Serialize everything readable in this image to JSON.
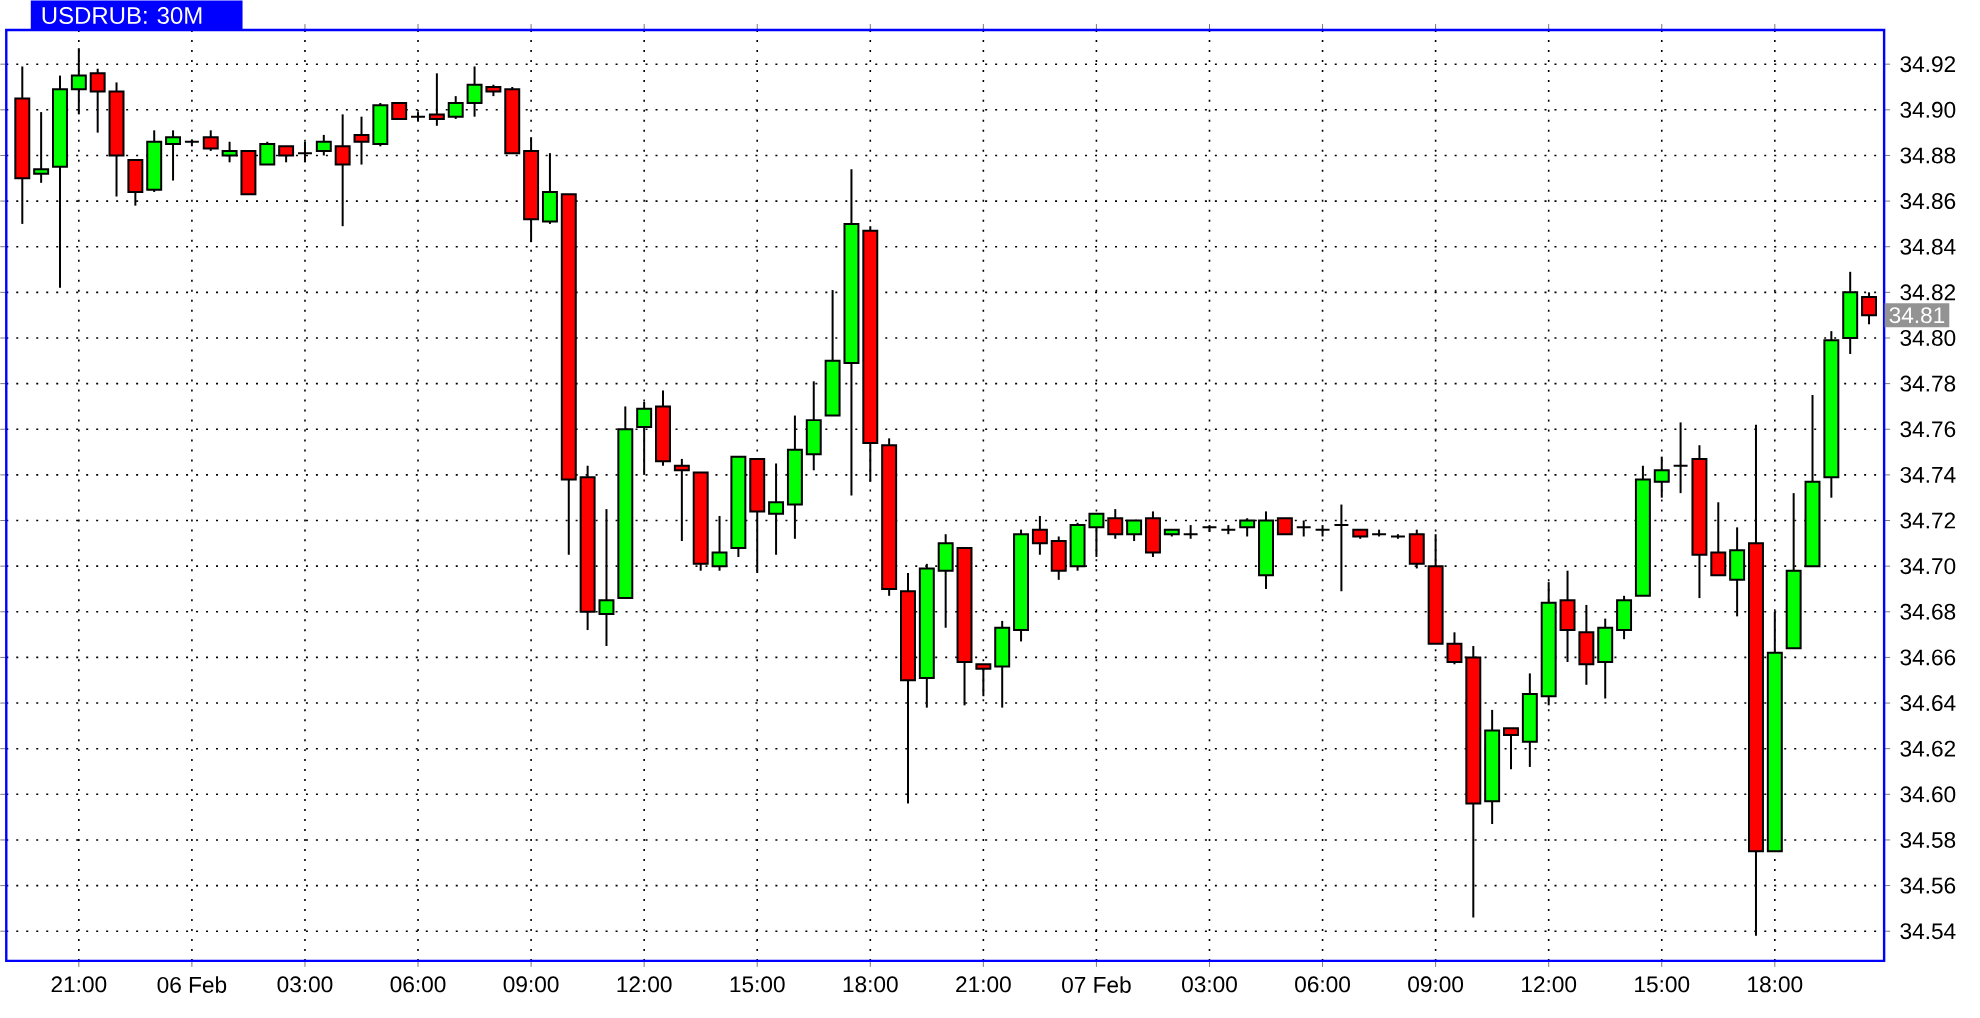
{
  "chart_data": {
    "type": "candlestick",
    "title": "USDRUB: 30M",
    "categories": [
      null,
      null,
      null,
      "21:00",
      null,
      null,
      null,
      null,
      null,
      "06 Feb",
      null,
      null,
      null,
      null,
      null,
      "03:00",
      null,
      null,
      null,
      null,
      null,
      "06:00",
      null,
      null,
      null,
      null,
      null,
      "09:00",
      null,
      null,
      null,
      null,
      null,
      "12:00",
      null,
      null,
      null,
      null,
      null,
      "15:00",
      null,
      null,
      null,
      null,
      null,
      "18:00",
      null,
      null,
      null,
      null,
      null,
      "21:00",
      null,
      null,
      null,
      null,
      null,
      "07 Feb",
      null,
      null,
      null,
      null,
      null,
      "03:00",
      null,
      null,
      null,
      null,
      null,
      "06:00",
      null,
      null,
      null,
      null,
      null,
      "09:00",
      null,
      null,
      null,
      null,
      null,
      "12:00",
      null,
      null,
      null,
      null,
      null,
      "15:00",
      null,
      null,
      null,
      null,
      null,
      "18:00",
      null,
      null,
      null,
      null,
      null
    ],
    "ohlc": [
      [
        34.905,
        34.919,
        34.85,
        34.87
      ],
      [
        34.872,
        34.899,
        34.868,
        34.874
      ],
      [
        34.875,
        34.915,
        34.822,
        34.909
      ],
      [
        34.909,
        34.927,
        34.898,
        34.915
      ],
      [
        34.916,
        34.918,
        34.89,
        34.908
      ],
      [
        34.908,
        34.912,
        34.862,
        34.88
      ],
      [
        34.878,
        34.878,
        34.858,
        34.864
      ],
      [
        34.865,
        34.891,
        34.864,
        34.886
      ],
      [
        34.885,
        34.891,
        34.869,
        34.888
      ],
      [
        34.886,
        34.887,
        34.884,
        34.886
      ],
      [
        34.888,
        34.891,
        34.882,
        34.883
      ],
      [
        34.88,
        34.886,
        34.877,
        34.882
      ],
      [
        34.882,
        34.882,
        34.863,
        34.863
      ],
      [
        34.876,
        34.886,
        34.876,
        34.885
      ],
      [
        34.884,
        34.884,
        34.877,
        34.88
      ],
      [
        34.881,
        34.886,
        34.877,
        34.881
      ],
      [
        34.882,
        34.889,
        34.88,
        34.886
      ],
      [
        34.884,
        34.898,
        34.849,
        34.876
      ],
      [
        34.889,
        34.897,
        34.876,
        34.886
      ],
      [
        34.885,
        34.903,
        34.884,
        34.902
      ],
      [
        34.903,
        34.903,
        34.896,
        34.896
      ],
      [
        34.897,
        34.899,
        34.895,
        34.897
      ],
      [
        34.898,
        34.916,
        34.893,
        34.896
      ],
      [
        34.897,
        34.906,
        34.896,
        34.903
      ],
      [
        34.903,
        34.919,
        34.897,
        34.911
      ],
      [
        34.91,
        34.911,
        34.906,
        34.908
      ],
      [
        34.909,
        34.91,
        34.881,
        34.881
      ],
      [
        34.882,
        34.888,
        34.842,
        34.852
      ],
      [
        34.851,
        34.881,
        34.85,
        34.864
      ],
      [
        34.863,
        34.863,
        34.705,
        34.738
      ],
      [
        34.739,
        34.744,
        34.672,
        34.68
      ],
      [
        34.679,
        34.725,
        34.665,
        34.685
      ],
      [
        34.686,
        34.77,
        34.686,
        34.76
      ],
      [
        34.761,
        34.772,
        34.74,
        34.769
      ],
      [
        34.77,
        34.777,
        34.744,
        34.746
      ],
      [
        34.744,
        34.747,
        34.711,
        34.742
      ],
      [
        34.741,
        34.741,
        34.698,
        34.701
      ],
      [
        34.7,
        34.722,
        34.698,
        34.706
      ],
      [
        34.708,
        34.748,
        34.704,
        34.748
      ],
      [
        34.747,
        34.747,
        34.697,
        34.724
      ],
      [
        34.723,
        34.745,
        34.705,
        34.728
      ],
      [
        34.727,
        34.766,
        34.712,
        34.751
      ],
      [
        34.749,
        34.781,
        34.742,
        34.764
      ],
      [
        34.766,
        34.821,
        34.766,
        34.79
      ],
      [
        34.789,
        34.874,
        34.731,
        34.85
      ],
      [
        34.847,
        34.849,
        34.737,
        34.754
      ],
      [
        34.753,
        34.756,
        34.687,
        34.69
      ],
      [
        34.689,
        34.697,
        34.596,
        34.65
      ],
      [
        34.651,
        34.701,
        34.638,
        34.699
      ],
      [
        34.698,
        34.714,
        34.673,
        34.71
      ],
      [
        34.708,
        34.708,
        34.639,
        34.658
      ],
      [
        34.657,
        34.657,
        34.643,
        34.655
      ],
      [
        34.656,
        34.676,
        34.638,
        34.673
      ],
      [
        34.672,
        34.716,
        34.667,
        34.714
      ],
      [
        34.716,
        34.722,
        34.705,
        34.71
      ],
      [
        34.711,
        34.713,
        34.694,
        34.698
      ],
      [
        34.7,
        34.719,
        34.698,
        34.718
      ],
      [
        34.717,
        34.723,
        34.704,
        34.723
      ],
      [
        34.721,
        34.725,
        34.712,
        34.714
      ],
      [
        34.714,
        34.72,
        34.711,
        34.72
      ],
      [
        34.721,
        34.724,
        34.704,
        34.706
      ],
      [
        34.714,
        34.716,
        34.713,
        34.716
      ],
      [
        34.714,
        34.718,
        34.712,
        34.714
      ],
      [
        34.717,
        34.718,
        34.715,
        34.717
      ],
      [
        34.716,
        34.718,
        34.714,
        34.716
      ],
      [
        34.717,
        34.721,
        34.713,
        34.72
      ],
      [
        34.696,
        34.724,
        34.69,
        34.72
      ],
      [
        34.721,
        34.721,
        34.714,
        34.714
      ],
      [
        34.717,
        34.72,
        34.713,
        34.717
      ],
      [
        34.716,
        34.718,
        34.713,
        34.716
      ],
      [
        34.718,
        34.727,
        34.689,
        34.718
      ],
      [
        34.716,
        34.716,
        34.712,
        34.713
      ],
      [
        34.714,
        34.716,
        34.713,
        34.714
      ],
      [
        34.713,
        34.714,
        34.712,
        34.713
      ],
      [
        34.714,
        34.716,
        34.699,
        34.701
      ],
      [
        34.7,
        34.714,
        34.666,
        34.666
      ],
      [
        34.666,
        34.671,
        34.657,
        34.658
      ],
      [
        34.66,
        34.665,
        34.546,
        34.596
      ],
      [
        34.597,
        34.637,
        34.587,
        34.628
      ],
      [
        34.629,
        34.629,
        34.611,
        34.626
      ],
      [
        34.623,
        34.653,
        34.612,
        34.644
      ],
      [
        34.643,
        34.693,
        34.639,
        34.684
      ],
      [
        34.685,
        34.698,
        34.658,
        34.672
      ],
      [
        34.671,
        34.683,
        34.648,
        34.657
      ],
      [
        34.658,
        34.677,
        34.642,
        34.673
      ],
      [
        34.672,
        34.687,
        34.668,
        34.685
      ],
      [
        34.687,
        34.744,
        34.687,
        34.738
      ],
      [
        34.737,
        34.748,
        34.73,
        34.742
      ],
      [
        34.744,
        34.763,
        34.732,
        34.744
      ],
      [
        34.747,
        34.753,
        34.686,
        34.705
      ],
      [
        34.706,
        34.728,
        34.696,
        34.696
      ],
      [
        34.694,
        34.717,
        34.678,
        34.707
      ],
      [
        34.71,
        34.762,
        34.538,
        34.575
      ],
      [
        34.575,
        34.68,
        34.575,
        34.662
      ],
      [
        34.664,
        34.732,
        34.664,
        34.698
      ],
      [
        34.7,
        34.775,
        34.7,
        34.737
      ],
      [
        34.739,
        34.803,
        34.73,
        34.799
      ],
      [
        34.8,
        34.829,
        34.793,
        34.82
      ],
      [
        34.818,
        34.82,
        34.806,
        34.81
      ]
    ],
    "colors": [
      "#ff0000",
      "#00ff00",
      "#00ff00",
      "#00ff00",
      "#ff0000",
      "#ff0000",
      "#ff0000",
      "#00ff00",
      "#00ff00",
      "#000000",
      "#ff0000",
      "#00ff00",
      "#ff0000",
      "#00ff00",
      "#ff0000",
      "#000000",
      "#00ff00",
      "#ff0000",
      "#ff0000",
      "#00ff00",
      "#ff0000",
      "#000000",
      "#ff0000",
      "#00ff00",
      "#00ff00",
      "#ff0000",
      "#ff0000",
      "#ff0000",
      "#00ff00",
      "#ff0000",
      "#ff0000",
      "#00ff00",
      "#00ff00",
      "#00ff00",
      "#ff0000",
      "#ff0000",
      "#ff0000",
      "#00ff00",
      "#00ff00",
      "#ff0000",
      "#00ff00",
      "#00ff00",
      "#00ff00",
      "#00ff00",
      "#00ff00",
      "#ff0000",
      "#ff0000",
      "#ff0000",
      "#00ff00",
      "#00ff00",
      "#ff0000",
      "#ff0000",
      "#00ff00",
      "#00ff00",
      "#ff0000",
      "#ff0000",
      "#00ff00",
      "#00ff00",
      "#ff0000",
      "#00ff00",
      "#ff0000",
      "#00ff00",
      "#000000",
      "#000000",
      "#000000",
      "#00ff00",
      "#00ff00",
      "#ff0000",
      "#000000",
      "#000000",
      "#000000",
      "#ff0000",
      "#000000",
      "#000000",
      "#ff0000",
      "#ff0000",
      "#ff0000",
      "#ff0000",
      "#00ff00",
      "#ff0000",
      "#00ff00",
      "#00ff00",
      "#ff0000",
      "#ff0000",
      "#00ff00",
      "#00ff00",
      "#00ff00",
      "#00ff00",
      "#000000",
      "#ff0000",
      "#ff0000",
      "#00ff00",
      "#ff0000",
      "#00ff00",
      "#00ff00",
      "#00ff00",
      "#00ff00",
      "#00ff00",
      "#ff0000"
    ],
    "ylim": [
      34.527,
      34.935
    ],
    "yticks": [
      34.54,
      34.56,
      34.58,
      {
        "value": 34.6,
        "label": "34.60"
      },
      34.62,
      34.64,
      34.66,
      34.68,
      {
        "value": 34.7,
        "label": "34.70"
      },
      34.72,
      34.74,
      34.76,
      34.78,
      {
        "value": 34.8,
        "label": "34.80"
      },
      34.82,
      34.84,
      34.86,
      34.88,
      {
        "value": 34.9,
        "label": "34.90"
      },
      34.92
    ],
    "grid": true,
    "annotations": [
      {
        "text": "34.81",
        "y": 34.81
      }
    ]
  }
}
